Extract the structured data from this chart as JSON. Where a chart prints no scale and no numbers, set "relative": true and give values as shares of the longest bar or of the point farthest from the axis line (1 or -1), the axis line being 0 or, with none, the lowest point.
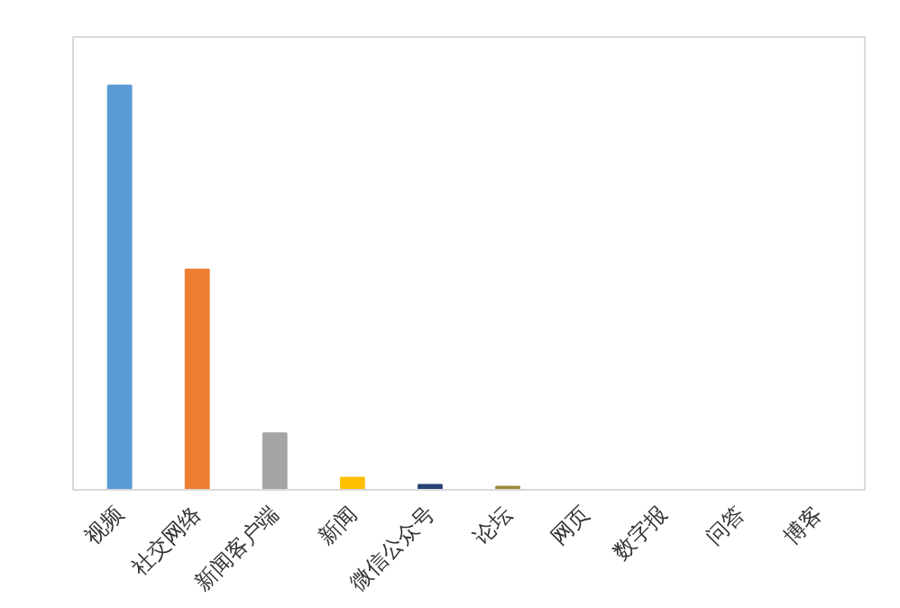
{
  "chart_data": {
    "type": "bar",
    "relative": true,
    "categories": [
      "视频",
      "社交网络",
      "新闻客户端",
      "新闻",
      "微信公众号",
      "论坛",
      "网页",
      "数字报",
      "问答",
      "博客"
    ],
    "values": [
      1,
      0.545,
      0.14,
      0.03,
      0.012,
      0.008,
      0,
      0,
      0,
      0
    ],
    "colors": [
      "#5b9bd5",
      "#ed7d31",
      "#a5a5a5",
      "#ffc000",
      "#264478",
      "#9e8a3c",
      "#4472c4",
      "#70ad47",
      "#255e91",
      "#9e480e"
    ],
    "grid": false
  }
}
